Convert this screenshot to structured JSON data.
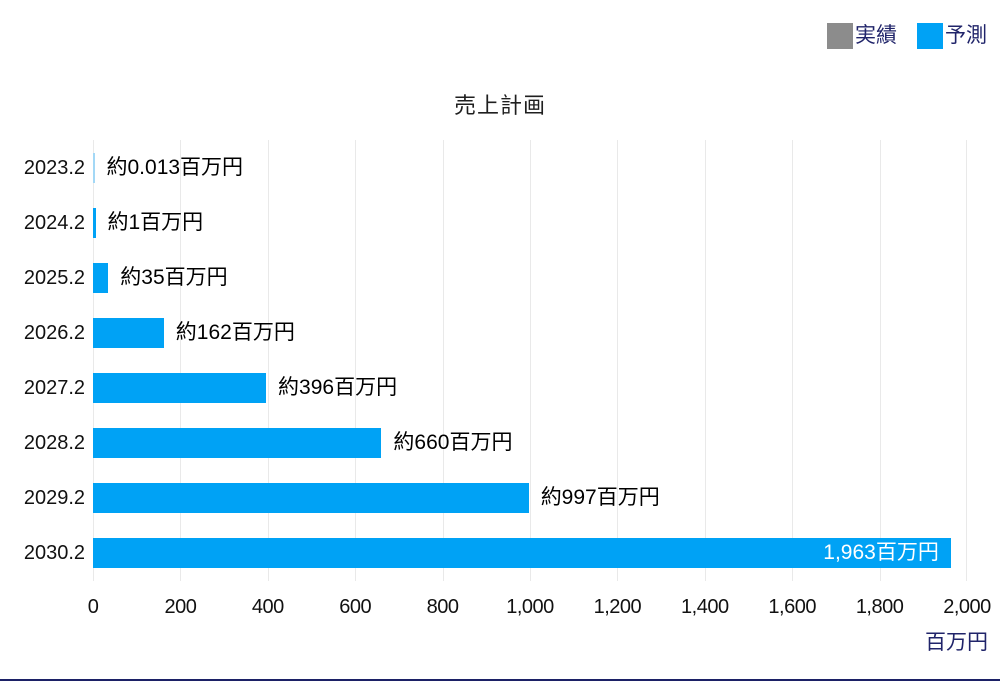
{
  "legend": {
    "actual_label": "実績",
    "forecast_label": "予測",
    "actual_color": "#8c8c8c",
    "forecast_color": "#00a2f5"
  },
  "chart_data": {
    "type": "bar",
    "orientation": "horizontal",
    "title": "売上計画",
    "categories": [
      "2023.2",
      "2024.2",
      "2025.2",
      "2026.2",
      "2027.2",
      "2028.2",
      "2029.2",
      "2030.2"
    ],
    "series": [
      {
        "name": "予測",
        "values": [
          0.013,
          1,
          35,
          162,
          396,
          660,
          997,
          1963
        ]
      }
    ],
    "bar_labels": [
      "約0.013百万円",
      "約1百万円",
      "約35百万円",
      "約162百万円",
      "約396百万円",
      "約660百万円",
      "約997百万円",
      "1,963百万円"
    ],
    "label_inside_flags": [
      false,
      false,
      false,
      false,
      false,
      false,
      false,
      true
    ],
    "x_ticks": [
      "0",
      "200",
      "400",
      "600",
      "800",
      "1,000",
      "1,200",
      "1,400",
      "1,600",
      "1,800",
      "2,000"
    ],
    "x_tick_values": [
      0,
      200,
      400,
      600,
      800,
      1000,
      1200,
      1400,
      1600,
      1800,
      2000
    ],
    "xlim": [
      0,
      2000
    ],
    "x_unit_label": "百万円",
    "bar_color": "#00a2f5",
    "tiny_bar_color": "#a3d8f6",
    "grid": "vertical-only",
    "legend_position": "top-right"
  }
}
